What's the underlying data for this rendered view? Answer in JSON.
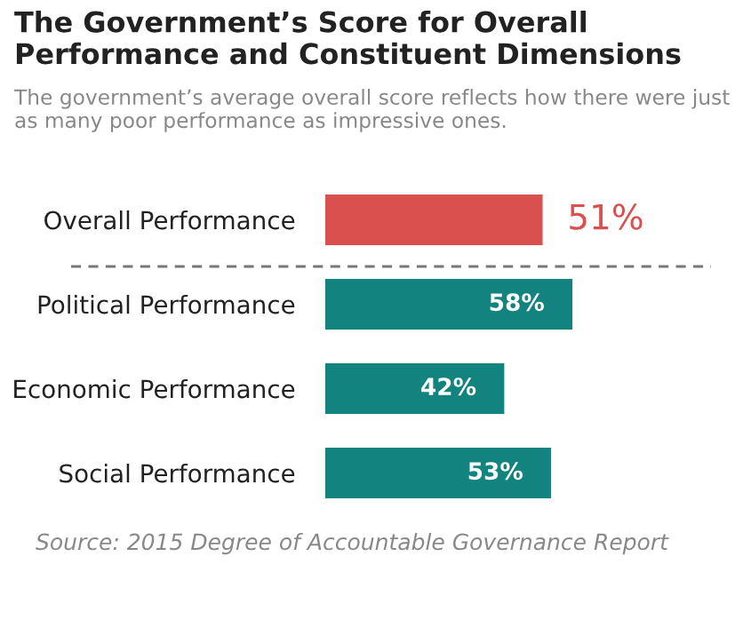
{
  "chart_data": {
    "type": "bar",
    "orientation": "horizontal",
    "title": "The Government’s Score for Overall Performance and Constituent Dimensions",
    "subtitle": "The government’s average overall score reflects how there were just as many poor performance as impressive ones.",
    "categories": [
      "Overall Performance",
      "Political Performance",
      "Economic Performance",
      "Social Performance"
    ],
    "series": [
      {
        "color": "#d9504f",
        "values": [
          51,
          null,
          null,
          null
        ],
        "value_labels": [
          "51%",
          null,
          null,
          null
        ]
      },
      {
        "color": "#12837e",
        "values": [
          null,
          58,
          42,
          53
        ],
        "value_labels": [
          null,
          "58%",
          "42%",
          "53%"
        ]
      }
    ],
    "annotations": [
      "Source: 2015 Degree of Accountable Governance Report"
    ]
  }
}
